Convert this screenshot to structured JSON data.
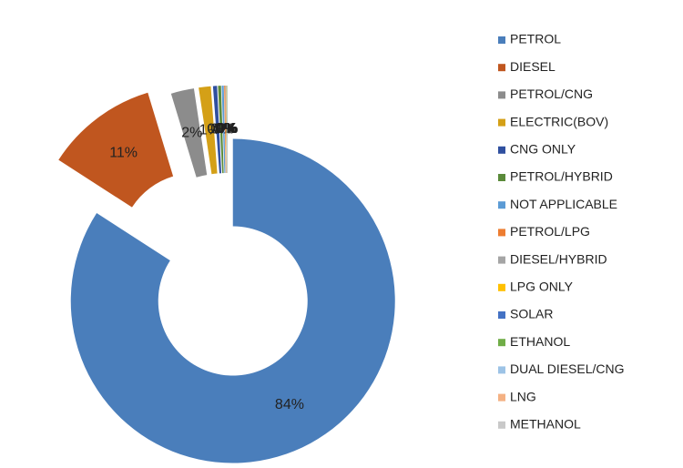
{
  "chart_data": {
    "type": "donut",
    "categories": [
      "PETROL",
      "DIESEL",
      "PETROL/CNG",
      "ELECTRIC(BOV)",
      "CNG ONLY",
      "PETROL/HYBRID",
      "NOT APPLICABLE",
      "PETROL/LPG",
      "DIESEL/HYBRID",
      "LPG ONLY",
      "SOLAR",
      "ETHANOL",
      "DUAL DIESEL/CNG",
      "LNG",
      "METHANOL"
    ],
    "values": [
      84.1,
      11.2,
      2.3,
      1.2,
      0.4,
      0.3,
      0.2,
      0.1,
      0.05,
      0.04,
      0.03,
      0.02,
      0.02,
      0.01,
      0.01
    ],
    "value_labels": [
      "84%",
      "11%",
      "2%",
      "1%",
      "0%",
      "0%",
      "0%",
      "0%",
      "0%",
      "0%",
      "0%",
      "0%",
      "0%",
      "0%",
      "0%"
    ],
    "colors": [
      "#4a7ebb",
      "#c0561f",
      "#8c8c8c",
      "#d4a017",
      "#2f4f9f",
      "#5a8a3a",
      "#5b9bd5",
      "#ed7d31",
      "#a5a5a5",
      "#ffc000",
      "#4472c4",
      "#70ad47",
      "#9dc3e6",
      "#f4b183",
      "#c9c9c9"
    ],
    "legend": "right"
  }
}
